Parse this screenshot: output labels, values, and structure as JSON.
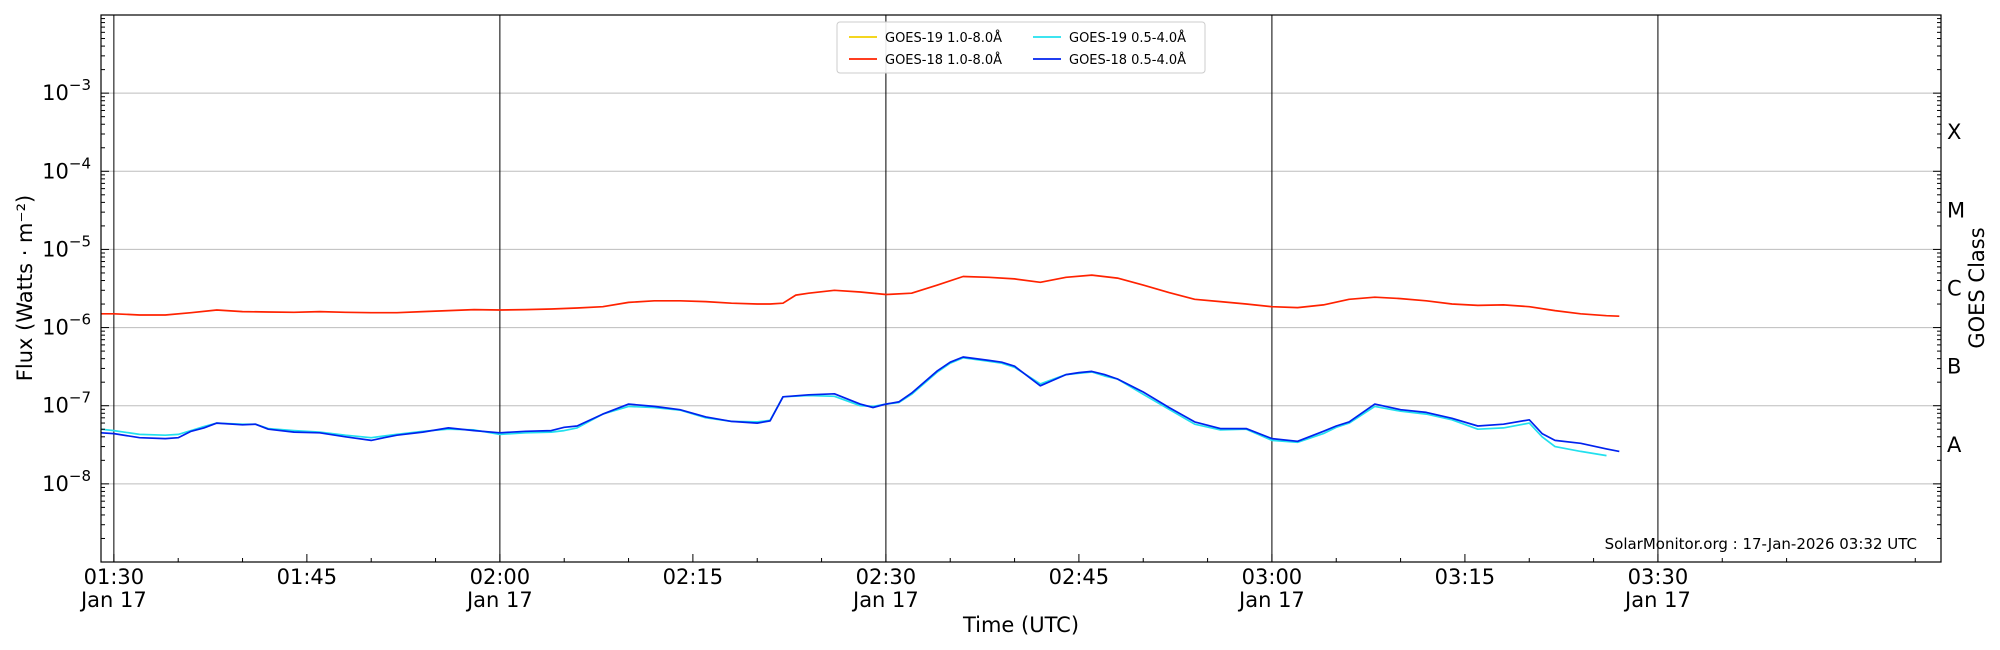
{
  "chart_data": {
    "type": "line",
    "title": "",
    "xlabel": "Time (UTC)",
    "ylabel": "Flux (Watts · m⁻²)",
    "y2label": "GOES Class",
    "y_scale": "log",
    "ylim": [
      1e-09,
      0.01
    ],
    "x_range_minutes": [
      "01:29",
      "03:52"
    ],
    "grid": "horizontal lines at decades",
    "legend_position": "top-center",
    "x_ticks": [
      {
        "time": "01:30",
        "date": "Jan 17"
      },
      {
        "time": "01:45",
        "date": ""
      },
      {
        "time": "02:00",
        "date": "Jan 17"
      },
      {
        "time": "02:15",
        "date": ""
      },
      {
        "time": "02:30",
        "date": "Jan 17"
      },
      {
        "time": "02:45",
        "date": ""
      },
      {
        "time": "03:00",
        "date": "Jan 17"
      },
      {
        "time": "03:15",
        "date": ""
      },
      {
        "time": "03:30",
        "date": "Jan 17"
      }
    ],
    "y_ticks": [
      {
        "base": "10",
        "exp": "−8",
        "value": 1e-08
      },
      {
        "base": "10",
        "exp": "−7",
        "value": 1e-07
      },
      {
        "base": "10",
        "exp": "−6",
        "value": 1e-06
      },
      {
        "base": "10",
        "exp": "−5",
        "value": 1e-05
      },
      {
        "base": "10",
        "exp": "−4",
        "value": 0.0001
      },
      {
        "base": "10",
        "exp": "−3",
        "value": 0.001
      }
    ],
    "goes_classes": [
      {
        "label": "A",
        "value": 3.16e-08
      },
      {
        "label": "B",
        "value": 3.16e-07
      },
      {
        "label": "C",
        "value": 3.16e-06
      },
      {
        "label": "M",
        "value": 3.16e-05
      },
      {
        "label": "X",
        "value": 0.000316
      }
    ],
    "vertical_lines": [
      "01:30",
      "02:00",
      "02:30",
      "03:00",
      "03:30"
    ],
    "series": [
      {
        "name": "GOES-19 1.0-8.0Å",
        "color": "#f2d000",
        "x": [
          "01:29",
          "01:30",
          "01:32",
          "01:34",
          "01:36",
          "01:38",
          "01:40",
          "01:42",
          "01:44",
          "01:46",
          "01:48",
          "01:50",
          "01:52",
          "01:54",
          "01:56",
          "01:58",
          "02:00",
          "02:02",
          "02:04",
          "02:06",
          "02:08",
          "02:10",
          "02:12",
          "02:14",
          "02:16",
          "02:18",
          "02:20",
          "02:21",
          "02:22",
          "02:23",
          "02:24",
          "02:26",
          "02:28",
          "02:30",
          "02:32",
          "02:34",
          "02:36",
          "02:38",
          "02:40",
          "02:42",
          "02:44",
          "02:46",
          "02:48",
          "02:50",
          "02:52",
          "02:54",
          "02:56",
          "02:58",
          "03:00",
          "03:02",
          "03:04",
          "03:06",
          "03:08",
          "03:10",
          "03:12",
          "03:14",
          "03:16",
          "03:18",
          "03:20",
          "03:22",
          "03:24",
          "03:26",
          "03:27"
        ],
        "y": [
          1.5e-06,
          1.5e-06,
          1.45e-06,
          1.45e-06,
          1.55e-06,
          1.68e-06,
          1.6e-06,
          1.58e-06,
          1.57e-06,
          1.6e-06,
          1.57e-06,
          1.55e-06,
          1.55e-06,
          1.6e-06,
          1.65e-06,
          1.7e-06,
          1.68e-06,
          1.7e-06,
          1.73e-06,
          1.78e-06,
          1.85e-06,
          2.1e-06,
          2.2e-06,
          2.2e-06,
          2.15e-06,
          2.05e-06,
          2e-06,
          2e-06,
          2.05e-06,
          2.6e-06,
          2.75e-06,
          3e-06,
          2.85e-06,
          2.65e-06,
          2.75e-06,
          3.5e-06,
          4.5e-06,
          4.4e-06,
          4.2e-06,
          3.8e-06,
          4.4e-06,
          4.7e-06,
          4.3e-06,
          3.5e-06,
          2.8e-06,
          2.3e-06,
          2.15e-06,
          2e-06,
          1.85e-06,
          1.8e-06,
          1.95e-06,
          2.3e-06,
          2.45e-06,
          2.35e-06,
          2.2e-06,
          2e-06,
          1.92e-06,
          1.95e-06,
          1.85e-06,
          1.65e-06,
          1.5e-06,
          1.42e-06,
          1.4e-06
        ],
        "visible": false
      },
      {
        "name": "GOES-18 1.0-8.0Å",
        "color": "#ff2200",
        "x": [
          "01:29",
          "01:30",
          "01:32",
          "01:34",
          "01:36",
          "01:38",
          "01:40",
          "01:42",
          "01:44",
          "01:46",
          "01:48",
          "01:50",
          "01:52",
          "01:54",
          "01:56",
          "01:58",
          "02:00",
          "02:02",
          "02:04",
          "02:06",
          "02:08",
          "02:10",
          "02:12",
          "02:14",
          "02:16",
          "02:18",
          "02:20",
          "02:21",
          "02:22",
          "02:23",
          "02:24",
          "02:26",
          "02:28",
          "02:30",
          "02:32",
          "02:34",
          "02:36",
          "02:38",
          "02:40",
          "02:42",
          "02:44",
          "02:46",
          "02:48",
          "02:50",
          "02:52",
          "02:54",
          "02:56",
          "02:58",
          "03:00",
          "03:02",
          "03:04",
          "03:06",
          "03:08",
          "03:10",
          "03:12",
          "03:14",
          "03:16",
          "03:18",
          "03:20",
          "03:22",
          "03:24",
          "03:26",
          "03:27"
        ],
        "y": [
          1.5e-06,
          1.5e-06,
          1.45e-06,
          1.45e-06,
          1.55e-06,
          1.68e-06,
          1.6e-06,
          1.58e-06,
          1.57e-06,
          1.6e-06,
          1.57e-06,
          1.55e-06,
          1.55e-06,
          1.6e-06,
          1.65e-06,
          1.7e-06,
          1.68e-06,
          1.7e-06,
          1.73e-06,
          1.78e-06,
          1.85e-06,
          2.1e-06,
          2.2e-06,
          2.2e-06,
          2.15e-06,
          2.05e-06,
          2e-06,
          2e-06,
          2.05e-06,
          2.6e-06,
          2.75e-06,
          3e-06,
          2.85e-06,
          2.65e-06,
          2.75e-06,
          3.5e-06,
          4.5e-06,
          4.4e-06,
          4.2e-06,
          3.8e-06,
          4.4e-06,
          4.7e-06,
          4.3e-06,
          3.5e-06,
          2.8e-06,
          2.3e-06,
          2.15e-06,
          2e-06,
          1.85e-06,
          1.8e-06,
          1.95e-06,
          2.3e-06,
          2.45e-06,
          2.35e-06,
          2.2e-06,
          2e-06,
          1.92e-06,
          1.95e-06,
          1.85e-06,
          1.65e-06,
          1.5e-06,
          1.42e-06,
          1.4e-06
        ]
      },
      {
        "name": "GOES-19 0.5-4.0Å",
        "color": "#22e0ee",
        "x": [
          "01:29",
          "01:30",
          "01:32",
          "01:34",
          "01:35",
          "01:36",
          "01:37",
          "01:38",
          "01:40",
          "01:41",
          "01:42",
          "01:44",
          "01:46",
          "01:48",
          "01:50",
          "01:51",
          "01:52",
          "01:54",
          "01:56",
          "01:58",
          "02:00",
          "02:02",
          "02:04",
          "02:05",
          "02:06",
          "02:08",
          "02:10",
          "02:12",
          "02:14",
          "02:16",
          "02:18",
          "02:20",
          "02:21",
          "02:22",
          "02:24",
          "02:26",
          "02:28",
          "02:29",
          "02:30",
          "02:31",
          "02:32",
          "02:34",
          "02:35",
          "02:36",
          "02:38",
          "02:39",
          "02:40",
          "02:42",
          "02:44",
          "02:45",
          "02:46",
          "02:47",
          "02:48",
          "02:50",
          "02:52",
          "02:54",
          "02:56",
          "02:58",
          "03:00",
          "03:02",
          "03:04",
          "03:05",
          "03:06",
          "03:08",
          "03:10",
          "03:12",
          "03:14",
          "03:16",
          "03:18",
          "03:20",
          "03:21",
          "03:22",
          "03:24",
          "03:26"
        ],
        "y": [
          5e-08,
          4.8e-08,
          4.3e-08,
          4.2e-08,
          4.3e-08,
          4.8e-08,
          5.4e-08,
          6e-08,
          5.8e-08,
          5.8e-08,
          5.1e-08,
          4.8e-08,
          4.6e-08,
          4.2e-08,
          3.9e-08,
          4.1e-08,
          4.3e-08,
          4.7e-08,
          5e-08,
          4.9e-08,
          4.3e-08,
          4.5e-08,
          4.6e-08,
          4.8e-08,
          5.2e-08,
          7.8e-08,
          9.8e-08,
          9.5e-08,
          8.8e-08,
          7e-08,
          6.3e-08,
          6.2e-08,
          6.5e-08,
          1.3e-07,
          1.35e-07,
          1.32e-07,
          1e-07,
          9.8e-08,
          1.05e-07,
          1.1e-07,
          1.4e-07,
          2.7e-07,
          3.5e-07,
          4.1e-07,
          3.7e-07,
          3.5e-07,
          3.1e-07,
          1.9e-07,
          2.5e-07,
          2.6e-07,
          2.7e-07,
          2.4e-07,
          2.2e-07,
          1.4e-07,
          9e-08,
          5.8e-08,
          4.9e-08,
          5e-08,
          3.6e-08,
          3.4e-08,
          4.4e-08,
          5.3e-08,
          6e-08,
          9.8e-08,
          8.5e-08,
          7.8e-08,
          6.6e-08,
          5e-08,
          5.2e-08,
          6e-08,
          4e-08,
          3e-08,
          2.6e-08,
          2.3e-08
        ]
      },
      {
        "name": "GOES-18 0.5-4.0Å",
        "color": "#0022ee",
        "x": [
          "01:29",
          "01:30",
          "01:32",
          "01:34",
          "01:35",
          "01:36",
          "01:37",
          "01:38",
          "01:40",
          "01:41",
          "01:42",
          "01:44",
          "01:46",
          "01:48",
          "01:50",
          "01:51",
          "01:52",
          "01:54",
          "01:56",
          "01:58",
          "02:00",
          "02:02",
          "02:04",
          "02:05",
          "02:06",
          "02:08",
          "02:10",
          "02:12",
          "02:14",
          "02:16",
          "02:18",
          "02:20",
          "02:21",
          "02:22",
          "02:24",
          "02:26",
          "02:28",
          "02:29",
          "02:30",
          "02:31",
          "02:32",
          "02:34",
          "02:35",
          "02:36",
          "02:38",
          "02:39",
          "02:40",
          "02:42",
          "02:44",
          "02:45",
          "02:46",
          "02:47",
          "02:48",
          "02:50",
          "02:52",
          "02:54",
          "02:56",
          "02:58",
          "03:00",
          "03:02",
          "03:04",
          "03:05",
          "03:06",
          "03:08",
          "03:10",
          "03:12",
          "03:14",
          "03:16",
          "03:18",
          "03:20",
          "03:21",
          "03:22",
          "03:24",
          "03:26",
          "03:27"
        ],
        "y": [
          4.5e-08,
          4.4e-08,
          3.9e-08,
          3.8e-08,
          3.9e-08,
          4.7e-08,
          5.2e-08,
          6e-08,
          5.7e-08,
          5.8e-08,
          5e-08,
          4.6e-08,
          4.5e-08,
          4e-08,
          3.6e-08,
          3.9e-08,
          4.2e-08,
          4.6e-08,
          5.2e-08,
          4.8e-08,
          4.5e-08,
          4.7e-08,
          4.8e-08,
          5.3e-08,
          5.5e-08,
          7.8e-08,
          1.05e-07,
          9.8e-08,
          8.9e-08,
          7.2e-08,
          6.3e-08,
          6e-08,
          6.4e-08,
          1.3e-07,
          1.38e-07,
          1.42e-07,
          1.05e-07,
          9.5e-08,
          1.05e-07,
          1.12e-07,
          1.45e-07,
          2.8e-07,
          3.6e-07,
          4.2e-07,
          3.8e-07,
          3.6e-07,
          3.2e-07,
          1.8e-07,
          2.5e-07,
          2.65e-07,
          2.75e-07,
          2.5e-07,
          2.2e-07,
          1.5e-07,
          9.5e-08,
          6.2e-08,
          5.1e-08,
          5.1e-08,
          3.8e-08,
          3.5e-08,
          4.7e-08,
          5.5e-08,
          6.2e-08,
          1.05e-07,
          8.9e-08,
          8.2e-08,
          6.9e-08,
          5.5e-08,
          5.8e-08,
          6.6e-08,
          4.4e-08,
          3.6e-08,
          3.3e-08,
          2.8e-08,
          2.6e-08
        ]
      }
    ],
    "credit": "SolarMonitor.org : 17-Jan-2026 03:32 UTC"
  }
}
